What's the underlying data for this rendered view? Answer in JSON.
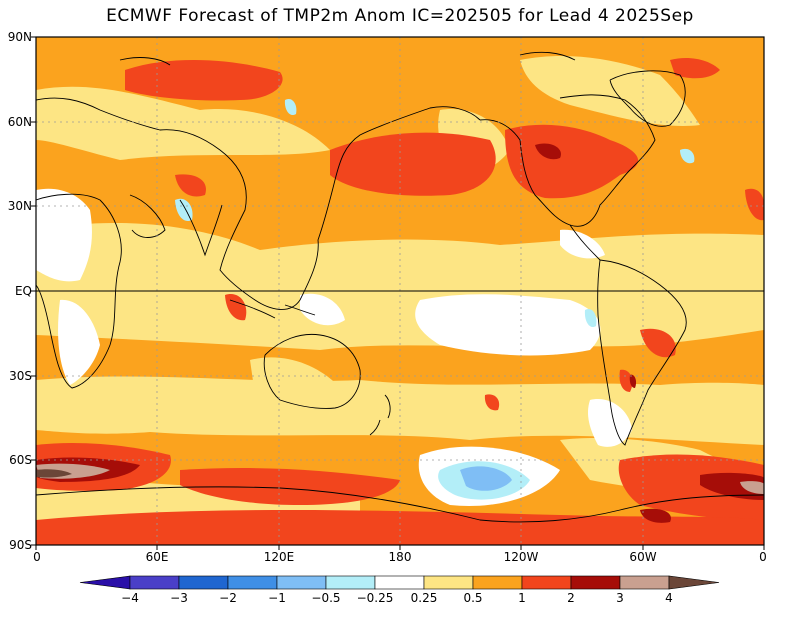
{
  "title": "ECMWF Forecast of TMP2m Anom IC=202505 for Lead 4 2025Sep",
  "y_axis_labels": [
    "90N",
    "60N",
    "30N",
    "EQ",
    "30S",
    "60S",
    "90S"
  ],
  "x_axis_labels": [
    "0",
    "60E",
    "120E",
    "180",
    "120W",
    "60W",
    "0"
  ],
  "colorbar": {
    "labels": [
      "−4",
      "−3",
      "−2",
      "−1",
      "−0.5",
      "−0.25",
      "0.25",
      "0.5",
      "1",
      "2",
      "3",
      "4"
    ],
    "colors": [
      "#2a0fa8",
      "#4a3fc8",
      "#1f66d0",
      "#3f8fe6",
      "#7fbef5",
      "#b3eef8",
      "#ffffff",
      "#fde584",
      "#fba31e",
      "#f2451d",
      "#a60d08",
      "#c9a090",
      "#6b4638"
    ]
  },
  "map": {
    "projection": "cylindrical equidistant",
    "field": "2 m temperature anomaly",
    "features": [
      "coastlines",
      "country borders",
      "US state borders",
      "dotted graticule every 30°",
      "equator line"
    ]
  }
}
